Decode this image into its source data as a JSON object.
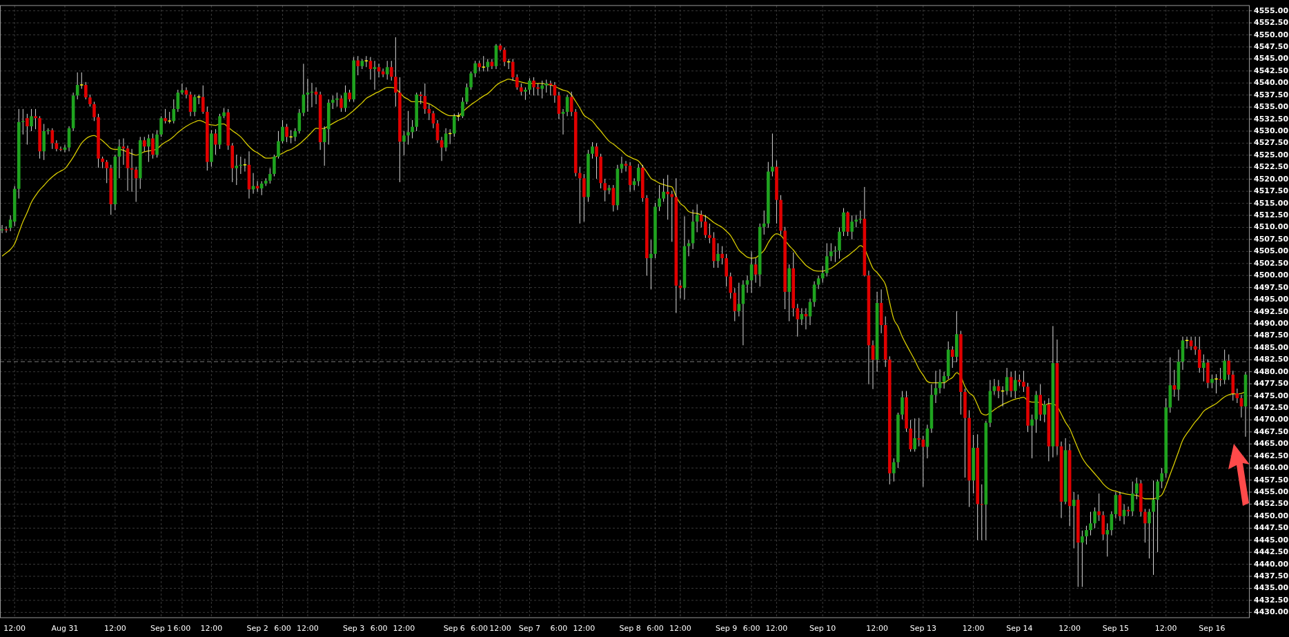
{
  "chart_data": {
    "type": "candlestick",
    "categories": [
      null,
      null,
      null,
      "12:00",
      null,
      null,
      null,
      null,
      null,
      null,
      null,
      null,
      null,
      null,
      null,
      "Aug 31",
      null,
      null,
      null,
      null,
      null,
      null,
      null,
      null,
      null,
      null,
      null,
      "12:00",
      null,
      null,
      null,
      null,
      null,
      null,
      null,
      null,
      null,
      null,
      "Sep 1",
      null,
      null,
      null,
      null,
      "6:00",
      null,
      null,
      null,
      null,
      null,
      null,
      "12:00",
      null,
      null,
      null,
      null,
      null,
      null,
      null,
      null,
      null,
      null,
      "Sep 2",
      null,
      null,
      null,
      null,
      null,
      "6:00",
      null,
      null,
      null,
      null,
      null,
      "12:00",
      null,
      null,
      null,
      null,
      null,
      null,
      null,
      null,
      null,
      null,
      "Sep 3",
      null,
      null,
      null,
      null,
      null,
      "6:00",
      null,
      null,
      null,
      null,
      null,
      "12:00",
      null,
      null,
      null,
      null,
      null,
      null,
      null,
      null,
      null,
      null,
      null,
      "Sep 6",
      null,
      null,
      null,
      null,
      null,
      "6:00",
      null,
      null,
      null,
      null,
      "12:00",
      null,
      null,
      null,
      null,
      null,
      null,
      "Sep 7",
      null,
      null,
      null,
      null,
      null,
      null,
      "6:00",
      null,
      null,
      null,
      null,
      null,
      "12:00",
      null,
      null,
      null,
      null,
      null,
      null,
      null,
      null,
      null,
      null,
      "Sep 8",
      null,
      null,
      null,
      null,
      null,
      "6:00",
      null,
      null,
      null,
      null,
      null,
      "12:00",
      null,
      null,
      null,
      null,
      null,
      null,
      null,
      null,
      null,
      null,
      "Sep 9",
      null,
      null,
      null,
      null,
      null,
      "6:00",
      null,
      null,
      null,
      null,
      null,
      "12:00",
      null,
      null,
      null,
      null,
      null,
      null,
      null,
      null,
      null,
      null,
      "Sep 10",
      null,
      null,
      null,
      null,
      null,
      null,
      null,
      null,
      null,
      null,
      null,
      null,
      "12:00",
      null,
      null,
      null,
      null,
      null,
      null,
      null,
      null,
      null,
      null,
      "Sep 13",
      null,
      null,
      null,
      null,
      null,
      null,
      null,
      null,
      null,
      null,
      null,
      "12:00",
      null,
      null,
      null,
      null,
      null,
      null,
      null,
      null,
      null,
      null,
      "Sep 14",
      null,
      null,
      null,
      null,
      null,
      null,
      null,
      null,
      null,
      null,
      null,
      "12:00",
      null,
      null,
      null,
      null,
      null,
      null,
      null,
      null,
      null,
      null,
      "Sep 15",
      null,
      null,
      null,
      null,
      null,
      null,
      null,
      null,
      null,
      null,
      null,
      "12:00",
      null,
      null,
      null,
      null,
      null,
      null,
      null,
      null,
      null,
      null,
      "Sep 16",
      null,
      null,
      null,
      null,
      null,
      null,
      null,
      null
    ],
    "ohlc": [
      [
        4509.4,
        4510.5,
        4508.8,
        4509.6
      ],
      [
        4509.6,
        4510.2,
        4508.9,
        4509.4
      ],
      [
        4509.9,
        4512.5,
        4509.2,
        4511.6
      ],
      [
        4511.2,
        4518.6,
        4510.3,
        4518.0
      ],
      [
        4518.0,
        4534.6,
        4516.0,
        4531.9
      ],
      [
        4531.9,
        4534.6,
        4529.3,
        4532.1
      ],
      [
        4532.7,
        4533.6,
        4527.2,
        4531.0
      ],
      [
        4531.0,
        4534.6,
        4530.0,
        4533.1
      ],
      [
        4533.1,
        4534.6,
        4530.4,
        4532.7
      ],
      [
        4532.7,
        4533.1,
        4524.3,
        4525.8
      ],
      [
        4525.8,
        4531.5,
        4524.0,
        4530.0
      ],
      [
        4530.0,
        4530.6,
        4529.3,
        4530.2
      ],
      [
        4530.2,
        4530.6,
        4526.3,
        4527.5
      ],
      [
        4527.5,
        4528.1,
        4525.8,
        4526.3
      ],
      [
        4526.3,
        4526.8,
        4525.8,
        4526.1
      ],
      [
        4526.1,
        4527.2,
        4525.6,
        4526.6
      ],
      [
        4526.6,
        4531.0,
        4525.8,
        4530.6
      ],
      [
        4530.6,
        4538.0,
        4530.0,
        4537.4
      ],
      [
        4537.4,
        4542.2,
        4536.6,
        4539.6
      ],
      [
        4539.6,
        4542.2,
        4538.8,
        4539.6
      ],
      [
        4539.6,
        4540.2,
        4536.6,
        4537.0
      ],
      [
        4537.0,
        4537.6,
        4535.1,
        4535.6
      ],
      [
        4535.6,
        4536.1,
        4532.1,
        4532.9
      ],
      [
        4532.9,
        4533.6,
        4522.4,
        4524.3
      ],
      [
        4524.3,
        4524.7,
        4522.3,
        4523.6
      ],
      [
        4523.6,
        4524.0,
        4519.2,
        4522.3
      ],
      [
        4522.3,
        4523.0,
        4512.6,
        4514.8
      ],
      [
        4514.8,
        4525.1,
        4513.6,
        4524.7
      ],
      [
        4524.7,
        4528.3,
        4520.2,
        4526.8
      ],
      [
        4526.8,
        4528.5,
        4523.0,
        4526.4
      ],
      [
        4526.4,
        4527.0,
        4517.6,
        4522.3
      ],
      [
        4522.3,
        4526.3,
        4517.4,
        4522.0
      ],
      [
        4522.0,
        4522.6,
        4515.3,
        4520.2
      ],
      [
        4520.2,
        4528.8,
        4518.0,
        4528.1
      ],
      [
        4528.1,
        4528.8,
        4525.8,
        4526.8
      ],
      [
        4526.8,
        4529.3,
        4523.6,
        4528.5
      ],
      [
        4528.5,
        4529.5,
        4524.3,
        4525.1
      ],
      [
        4525.1,
        4530.2,
        4524.5,
        4529.3
      ],
      [
        4529.3,
        4533.1,
        4528.8,
        4532.7
      ],
      [
        4532.7,
        4534.6,
        4531.6,
        4532.1
      ],
      [
        4532.1,
        4534.0,
        4531.6,
        4532.1
      ],
      [
        4532.1,
        4536.6,
        4531.6,
        4534.6
      ],
      [
        4534.6,
        4538.6,
        4534.0,
        4538.0
      ],
      [
        4538.0,
        4539.9,
        4537.6,
        4538.5
      ],
      [
        4538.5,
        4539.1,
        4536.8,
        4537.6
      ],
      [
        4537.6,
        4538.2,
        4533.1,
        4534.0
      ],
      [
        4534.0,
        4537.6,
        4533.1,
        4537.1
      ],
      [
        4537.1,
        4537.6,
        4535.6,
        4537.1
      ],
      [
        4537.1,
        4539.5,
        4533.6,
        4534.0
      ],
      [
        4534.0,
        4535.1,
        4521.8,
        4523.6
      ],
      [
        4523.6,
        4530.2,
        4522.6,
        4529.5
      ],
      [
        4529.5,
        4530.4,
        4525.1,
        4527.2
      ],
      [
        4527.2,
        4533.6,
        4526.3,
        4533.1
      ],
      [
        4533.1,
        4534.8,
        4532.7,
        4533.9
      ],
      [
        4533.9,
        4534.6,
        4526.1,
        4527.0
      ],
      [
        4527.0,
        4527.5,
        4519.4,
        4522.3
      ],
      [
        4522.3,
        4525.1,
        4518.8,
        4522.8
      ],
      [
        4522.8,
        4524.7,
        4521.1,
        4523.0
      ],
      [
        4523.0,
        4524.3,
        4521.6,
        4523.0
      ],
      [
        4523.0,
        4525.8,
        4516.0,
        4517.9
      ],
      [
        4517.9,
        4521.3,
        4517.0,
        4518.6
      ],
      [
        4518.6,
        4519.6,
        4517.4,
        4518.1
      ],
      [
        4518.1,
        4519.6,
        4516.7,
        4519.1
      ],
      [
        4519.1,
        4520.2,
        4518.6,
        4519.7
      ],
      [
        4519.7,
        4522.3,
        4519.1,
        4521.1
      ],
      [
        4521.1,
        4525.1,
        4520.6,
        4524.7
      ],
      [
        4524.7,
        4530.0,
        4524.3,
        4527.9
      ],
      [
        4527.9,
        4532.3,
        4527.5,
        4530.9
      ],
      [
        4530.9,
        4531.5,
        4527.7,
        4528.8
      ],
      [
        4528.8,
        4530.2,
        4527.5,
        4528.8
      ],
      [
        4528.8,
        4530.6,
        4527.9,
        4530.0
      ],
      [
        4530.0,
        4534.6,
        4529.5,
        4533.8
      ],
      [
        4533.8,
        4544.0,
        4533.1,
        4537.6
      ],
      [
        4537.6,
        4540.9,
        4534.0,
        4538.0
      ],
      [
        4538.0,
        4540.0,
        4535.0,
        4538.2
      ],
      [
        4538.2,
        4539.1,
        4535.6,
        4537.6
      ],
      [
        4537.6,
        4538.2,
        4526.1,
        4527.7
      ],
      [
        4527.7,
        4531.0,
        4522.8,
        4530.4
      ],
      [
        4530.4,
        4536.6,
        4527.2,
        4535.9
      ],
      [
        4535.9,
        4537.4,
        4534.6,
        4536.5
      ],
      [
        4536.5,
        4538.0,
        4535.1,
        4536.8
      ],
      [
        4536.8,
        4537.4,
        4534.0,
        4534.8
      ],
      [
        4534.8,
        4539.5,
        4534.0,
        4538.0
      ],
      [
        4538.0,
        4538.6,
        4536.1,
        4536.6
      ],
      [
        4536.6,
        4545.4,
        4536.1,
        4544.7
      ],
      [
        4544.7,
        4545.6,
        4541.6,
        4543.5
      ],
      [
        4543.5,
        4545.0,
        4542.9,
        4544.6
      ],
      [
        4544.6,
        4545.6,
        4543.3,
        4544.6
      ],
      [
        4544.6,
        4545.4,
        4540.7,
        4542.9
      ],
      [
        4542.9,
        4544.6,
        4538.6,
        4543.3
      ],
      [
        4543.3,
        4544.0,
        4541.2,
        4542.4
      ],
      [
        4542.4,
        4543.0,
        4541.2,
        4541.8
      ],
      [
        4541.8,
        4544.6,
        4540.7,
        4543.3
      ],
      [
        4543.3,
        4544.6,
        4540.5,
        4541.3
      ],
      [
        4541.3,
        4549.5,
        4535.1,
        4538.0
      ],
      [
        4538.0,
        4541.2,
        4519.4,
        4527.8
      ],
      [
        4527.8,
        4530.0,
        4525.0,
        4529.1
      ],
      [
        4529.1,
        4534.2,
        4527.2,
        4529.8
      ],
      [
        4529.8,
        4532.3,
        4528.5,
        4530.9
      ],
      [
        4530.9,
        4538.0,
        4530.0,
        4537.6
      ],
      [
        4537.6,
        4538.2,
        4535.6,
        4537.3
      ],
      [
        4537.3,
        4539.9,
        4533.6,
        4534.6
      ],
      [
        4534.6,
        4535.6,
        4532.3,
        4533.7
      ],
      [
        4533.7,
        4534.2,
        4530.6,
        4531.6
      ],
      [
        4531.6,
        4532.3,
        4527.5,
        4528.1
      ],
      [
        4528.1,
        4528.8,
        4523.8,
        4526.6
      ],
      [
        4526.6,
        4530.6,
        4525.8,
        4529.5
      ],
      [
        4529.5,
        4530.4,
        4527.3,
        4529.5
      ],
      [
        4529.5,
        4533.6,
        4528.8,
        4533.1
      ],
      [
        4533.1,
        4533.9,
        4532.1,
        4533.1
      ],
      [
        4533.1,
        4537.0,
        4532.7,
        4536.1
      ],
      [
        4536.1,
        4539.9,
        4535.6,
        4539.1
      ],
      [
        4539.1,
        4542.4,
        4538.6,
        4542.0
      ],
      [
        4542.0,
        4544.6,
        4541.2,
        4544.1
      ],
      [
        4544.1,
        4544.6,
        4542.4,
        4543.3
      ],
      [
        4543.3,
        4545.6,
        4542.4,
        4543.3
      ],
      [
        4543.3,
        4545.0,
        4542.4,
        4544.4
      ],
      [
        4544.4,
        4545.0,
        4542.9,
        4543.5
      ],
      [
        4543.5,
        4548.1,
        4542.9,
        4547.8
      ],
      [
        4547.8,
        4548.1,
        4546.6,
        4546.9
      ],
      [
        4546.9,
        4547.4,
        4543.5,
        4544.4
      ],
      [
        4544.4,
        4545.0,
        4542.9,
        4544.4
      ],
      [
        4544.4,
        4545.0,
        4540.5,
        4541.2
      ],
      [
        4541.2,
        4541.8,
        4538.6,
        4539.1
      ],
      [
        4539.1,
        4539.9,
        4537.4,
        4538.2
      ],
      [
        4538.2,
        4539.1,
        4536.5,
        4538.6
      ],
      [
        4538.6,
        4541.0,
        4537.6,
        4540.5
      ],
      [
        4540.5,
        4541.2,
        4537.4,
        4539.1
      ],
      [
        4539.1,
        4539.9,
        4537.4,
        4538.8
      ],
      [
        4538.8,
        4540.5,
        4536.8,
        4539.5
      ],
      [
        4539.5,
        4540.7,
        4538.0,
        4539.9
      ],
      [
        4539.9,
        4540.5,
        4537.4,
        4539.6
      ],
      [
        4539.6,
        4540.2,
        4535.9,
        4537.4
      ],
      [
        4537.4,
        4538.2,
        4532.5,
        4533.6
      ],
      [
        4533.6,
        4534.6,
        4529.3,
        4534.0
      ],
      [
        4534.0,
        4537.6,
        4533.1,
        4537.1
      ],
      [
        4537.1,
        4538.2,
        4533.1,
        4534.0
      ],
      [
        4534.0,
        4534.6,
        4520.6,
        4521.3
      ],
      [
        4521.3,
        4522.6,
        4510.8,
        4520.2
      ],
      [
        4520.2,
        4521.1,
        4511.2,
        4516.3
      ],
      [
        4516.3,
        4526.1,
        4515.3,
        4525.3
      ],
      [
        4525.3,
        4527.7,
        4524.3,
        4526.8
      ],
      [
        4526.8,
        4527.5,
        4520.1,
        4524.7
      ],
      [
        4524.7,
        4525.3,
        4518.1,
        4519.2
      ],
      [
        4519.2,
        4520.1,
        4515.4,
        4517.7
      ],
      [
        4517.7,
        4518.8,
        4516.9,
        4518.2
      ],
      [
        4518.2,
        4518.8,
        4513.3,
        4514.6
      ],
      [
        4514.6,
        4523.0,
        4513.6,
        4522.2
      ],
      [
        4522.2,
        4524.7,
        4521.3,
        4523.2
      ],
      [
        4523.2,
        4523.8,
        4521.6,
        4522.8
      ],
      [
        4522.8,
        4523.6,
        4517.4,
        4518.8
      ],
      [
        4518.8,
        4520.2,
        4517.7,
        4519.6
      ],
      [
        4519.6,
        4523.2,
        4518.6,
        4522.4
      ],
      [
        4522.4,
        4523.0,
        4515.3,
        4516.1
      ],
      [
        4516.1,
        4516.7,
        4500.0,
        4503.6
      ],
      [
        4503.6,
        4507.4,
        4497.1,
        4504.5
      ],
      [
        4504.5,
        4515.1,
        4503.6,
        4514.3
      ],
      [
        4514.3,
        4518.8,
        4513.4,
        4516.0
      ],
      [
        4516.0,
        4520.1,
        4515.3,
        4517.4
      ],
      [
        4517.4,
        4520.9,
        4511.6,
        4516.9
      ],
      [
        4516.9,
        4517.6,
        4507.0,
        4516.3
      ],
      [
        4516.3,
        4520.2,
        4492.2,
        4497.9
      ],
      [
        4497.9,
        4499.0,
        4495.2,
        4497.4
      ],
      [
        4497.4,
        4512.3,
        4495.0,
        4506.1
      ],
      [
        4506.1,
        4507.4,
        4504.0,
        4506.7
      ],
      [
        4506.7,
        4513.7,
        4505.5,
        4511.2
      ],
      [
        4511.2,
        4514.8,
        4509.0,
        4512.6
      ],
      [
        4512.6,
        4513.5,
        4510.0,
        4511.2
      ],
      [
        4511.2,
        4512.6,
        4507.8,
        4508.4
      ],
      [
        4508.4,
        4510.8,
        4506.7,
        4507.8
      ],
      [
        4507.8,
        4509.0,
        4501.6,
        4503.0
      ],
      [
        4503.0,
        4506.7,
        4501.6,
        4504.5
      ],
      [
        4504.5,
        4506.1,
        4502.3,
        4503.6
      ],
      [
        4503.6,
        4504.5,
        4497.7,
        4499.8
      ],
      [
        4499.8,
        4500.6,
        4495.2,
        4496.4
      ],
      [
        4496.4,
        4497.4,
        4490.5,
        4492.6
      ],
      [
        4492.6,
        4498.5,
        4491.5,
        4494.1
      ],
      [
        4494.1,
        4499.0,
        4485.5,
        4498.1
      ],
      [
        4498.1,
        4500.0,
        4496.4,
        4499.0
      ],
      [
        4499.0,
        4505.0,
        4496.4,
        4502.3
      ],
      [
        4502.3,
        4503.6,
        4498.5,
        4500.2
      ],
      [
        4500.2,
        4510.8,
        4497.7,
        4510.1
      ],
      [
        4510.1,
        4513.5,
        4508.5,
        4510.8
      ],
      [
        4510.8,
        4523.6,
        4509.9,
        4521.6
      ],
      [
        4521.6,
        4529.5,
        4520.6,
        4522.6
      ],
      [
        4522.6,
        4523.9,
        4510.8,
        4515.7
      ],
      [
        4515.7,
        4516.7,
        4508.5,
        4509.3
      ],
      [
        4509.3,
        4510.1,
        4493.0,
        4496.6
      ],
      [
        4496.6,
        4502.3,
        4490.5,
        4501.5
      ],
      [
        4501.5,
        4504.8,
        4491.5,
        4493.2
      ],
      [
        4493.2,
        4494.1,
        4487.3,
        4490.9
      ],
      [
        4490.9,
        4493.2,
        4489.7,
        4492.0
      ],
      [
        4492.0,
        4493.2,
        4488.8,
        4491.5
      ],
      [
        4491.5,
        4495.2,
        4489.7,
        4494.5
      ],
      [
        4494.5,
        4498.8,
        4493.5,
        4498.1
      ],
      [
        4498.1,
        4500.0,
        4497.2,
        4499.4
      ],
      [
        4499.4,
        4502.0,
        4498.5,
        4500.5
      ],
      [
        4500.5,
        4506.7,
        4499.8,
        4504.0
      ],
      [
        4504.0,
        4506.7,
        4503.0,
        4505.0
      ],
      [
        4505.0,
        4506.1,
        4502.8,
        4505.2
      ],
      [
        4505.2,
        4510.0,
        4503.5,
        4509.1
      ],
      [
        4509.1,
        4514.0,
        4508.2,
        4513.1
      ],
      [
        4513.1,
        4513.3,
        4508.2,
        4509.1
      ],
      [
        4509.1,
        4512.5,
        4507.5,
        4511.2
      ],
      [
        4511.2,
        4512.6,
        4510.0,
        4511.6
      ],
      [
        4511.6,
        4513.5,
        4510.8,
        4511.8
      ],
      [
        4511.8,
        4518.4,
        4499.8,
        4500.0
      ],
      [
        4500.0,
        4501.0,
        4477.4,
        4485.5
      ],
      [
        4485.5,
        4486.5,
        4476.4,
        4482.5
      ],
      [
        4482.5,
        4496.6,
        4480.0,
        4494.3
      ],
      [
        4494.3,
        4497.1,
        4488.0,
        4489.7
      ],
      [
        4489.7,
        4491.5,
        4481.0,
        4482.5
      ],
      [
        4482.5,
        4483.2,
        4456.6,
        4458.9
      ],
      [
        4458.9,
        4462.0,
        4457.2,
        4461.2
      ],
      [
        4461.2,
        4471.5,
        4460.0,
        4471.1
      ],
      [
        4471.1,
        4476.0,
        4470.1,
        4474.7
      ],
      [
        4474.7,
        4476.0,
        4467.5,
        4468.2
      ],
      [
        4468.2,
        4470.0,
        4463.4,
        4463.9
      ],
      [
        4463.9,
        4470.3,
        4463.4,
        4466.2
      ],
      [
        4466.2,
        4470.4,
        4464.5,
        4465.9
      ],
      [
        4465.9,
        4466.7,
        4456.1,
        4464.4
      ],
      [
        4464.4,
        4469.0,
        4462.0,
        4468.2
      ],
      [
        4468.2,
        4477.4,
        4467.3,
        4475.2
      ],
      [
        4475.2,
        4480.2,
        4473.5,
        4476.6
      ],
      [
        4476.6,
        4480.5,
        4475.5,
        4477.9
      ],
      [
        4477.9,
        4480.0,
        4476.5,
        4479.1
      ],
      [
        4479.1,
        4486.3,
        4478.5,
        4484.6
      ],
      [
        4484.6,
        4485.3,
        4480.8,
        4483.1
      ],
      [
        4483.1,
        4492.6,
        4482.0,
        4487.8
      ],
      [
        4487.8,
        4488.5,
        4471.1,
        4475.8
      ],
      [
        4475.8,
        4476.5,
        4458.0,
        4470.4
      ],
      [
        4470.4,
        4472.0,
        4451.9,
        4457.4
      ],
      [
        4457.4,
        4466.9,
        4454.7,
        4464.2
      ],
      [
        4464.2,
        4467.0,
        4445.0,
        4452.5
      ],
      [
        4452.5,
        4456.6,
        4445.0,
        4452.4
      ],
      [
        4452.4,
        4469.8,
        4445.0,
        4469.4
      ],
      [
        4469.4,
        4478.3,
        4468.5,
        4476.0
      ],
      [
        4476.0,
        4478.5,
        4475.2,
        4477.0
      ],
      [
        4477.0,
        4478.3,
        4474.5,
        4476.0
      ],
      [
        4476.0,
        4477.0,
        4472.8,
        4476.0
      ],
      [
        4476.0,
        4480.8,
        4475.2,
        4478.9
      ],
      [
        4478.9,
        4480.0,
        4474.7,
        4476.0
      ],
      [
        4476.0,
        4480.2,
        4474.5,
        4478.3
      ],
      [
        4478.3,
        4479.4,
        4477.0,
        4477.9
      ],
      [
        4477.9,
        4480.2,
        4475.8,
        4476.9
      ],
      [
        4476.9,
        4477.7,
        4467.5,
        4468.8
      ],
      [
        4468.8,
        4471.1,
        4462.0,
        4470.1
      ],
      [
        4470.1,
        4476.0,
        4467.3,
        4475.2
      ],
      [
        4475.2,
        4477.4,
        4469.8,
        4471.1
      ],
      [
        4471.1,
        4474.0,
        4469.5,
        4473.2
      ],
      [
        4473.2,
        4474.5,
        4461.4,
        4464.5
      ],
      [
        4464.5,
        4489.5,
        4462.2,
        4481.8
      ],
      [
        4481.8,
        4486.7,
        4462.7,
        4464.5
      ],
      [
        4464.5,
        4465.5,
        4449.6,
        4453.0
      ],
      [
        4453.0,
        4466.2,
        4452.5,
        4463.7
      ],
      [
        4463.7,
        4465.0,
        4447.9,
        4452.1
      ],
      [
        4452.1,
        4455.0,
        4443.3,
        4453.4
      ],
      [
        4453.4,
        4454.5,
        4435.3,
        4444.5
      ],
      [
        4444.5,
        4447.0,
        4435.3,
        4445.8
      ],
      [
        4445.8,
        4448.0,
        4444.1,
        4447.1
      ],
      [
        4447.1,
        4450.9,
        4446.0,
        4448.5
      ],
      [
        4448.5,
        4451.8,
        4447.5,
        4451.0
      ],
      [
        4451.0,
        4454.7,
        4449.0,
        4450.2
      ],
      [
        4450.2,
        4451.0,
        4445.0,
        4446.2
      ],
      [
        4446.2,
        4448.5,
        4441.6,
        4447.1
      ],
      [
        4447.1,
        4451.0,
        4446.0,
        4450.4
      ],
      [
        4450.4,
        4455.0,
        4449.5,
        4454.4
      ],
      [
        4454.4,
        4455.1,
        4449.0,
        4450.0
      ],
      [
        4450.0,
        4452.5,
        4448.3,
        4451.3
      ],
      [
        4451.3,
        4452.0,
        4450.0,
        4451.0
      ],
      [
        4451.0,
        4457.2,
        4450.0,
        4454.7
      ],
      [
        4454.7,
        4458.0,
        4453.5,
        4456.8
      ],
      [
        4456.8,
        4457.5,
        4449.9,
        4450.9
      ],
      [
        4450.9,
        4451.5,
        4444.5,
        4448.5
      ],
      [
        4448.5,
        4451.5,
        4441.2,
        4450.9
      ],
      [
        4450.9,
        4457.4,
        4437.8,
        4453.4
      ],
      [
        4453.4,
        4457.6,
        4442.5,
        4457.2
      ],
      [
        4457.2,
        4460.0,
        4455.8,
        4458.9
      ],
      [
        4458.9,
        4474.5,
        4458.0,
        4472.6
      ],
      [
        4472.6,
        4483.0,
        4471.5,
        4477.2
      ],
      [
        4477.2,
        4480.4,
        4474.8,
        4476.3
      ],
      [
        4476.3,
        4484.6,
        4474.0,
        4482.1
      ],
      [
        4482.1,
        4487.3,
        4480.4,
        4486.5
      ],
      [
        4486.5,
        4487.3,
        4484.8,
        4486.5
      ],
      [
        4486.5,
        4487.3,
        4484.5,
        4485.3
      ],
      [
        4485.3,
        4487.3,
        4483.5,
        4484.6
      ],
      [
        4484.6,
        4487.3,
        4479.8,
        4480.8
      ],
      [
        4480.8,
        4483.6,
        4478.0,
        4481.9
      ],
      [
        4481.9,
        4482.6,
        4476.6,
        4477.7
      ],
      [
        4477.7,
        4479.4,
        4476.6,
        4478.5
      ],
      [
        4478.5,
        4479.5,
        4475.5,
        4478.5
      ],
      [
        4478.5,
        4480.8,
        4477.0,
        4478.3
      ],
      [
        4478.3,
        4484.6,
        4477.4,
        4482.3
      ],
      [
        4482.3,
        4483.6,
        4478.3,
        4479.4
      ],
      [
        4479.4,
        4480.2,
        4474.0,
        4475.5
      ],
      [
        4475.5,
        4476.5,
        4473.5,
        4474.5
      ],
      [
        4474.5,
        4475.2,
        4470.5,
        4472.8
      ],
      [
        4472.8,
        4480.0,
        4466.5,
        4479.4
      ]
    ],
    "series": [
      {
        "type": "line",
        "color": "#d8cc00",
        "values": [
          4504.0,
          4504.7,
          4505.4,
          4506.6,
          4508.9,
          4511.2,
          4513.1,
          4515.2,
          4516.6,
          4517.8,
          4518.7,
          4519.7,
          4520.5,
          4521.2,
          4521.7,
          4522.2,
          4523.3,
          4524.6,
          4526.1,
          4527.5,
          4528.4,
          4528.9,
          4529.1,
          4528.6,
          4528.0,
          4527.2,
          4526.4,
          4526.2,
          4526.2,
          4526.0,
          4525.6,
          4525.3,
          4525.0,
          4525.3,
          4525.7,
          4525.9,
          4526.0,
          4526.3,
          4527.1,
          4527.7,
          4528.2,
          4528.9,
          4529.7,
          4530.4,
          4531.0,
          4531.5,
          4531.9,
          4532.2,
          4532.0,
          4531.5,
          4531.3,
          4531.2,
          4531.5,
          4531.5,
          4530.8,
          4530.1,
          4529.5,
          4528.8,
          4527.8,
          4526.8,
          4526.0,
          4525.5,
          4524.9,
          4524.4,
          4524.4,
          4524.5,
          4525.0,
          4525.4,
          4525.9,
          4526.2,
          4526.7,
          4527.3,
          4528.1,
          4528.9,
          4529.8,
          4530.6,
          4530.5,
          4530.6,
          4531.1,
          4531.6,
          4532.1,
          4532.5,
          4532.9,
          4533.6,
          4534.3,
          4535.1,
          4535.9,
          4536.8,
          4537.3,
          4537.8,
          4538.2,
          4538.7,
          4539.1,
          4539.1,
          4538.8,
          4538.0,
          4537.1,
          4536.6,
          4536.1,
          4536.1,
          4536.1,
          4535.9,
          4535.7,
          4535.2,
          4534.6,
          4534.0,
          4533.5,
          4533.2,
          4533.2,
          4533.2,
          4534.0,
          4534.8,
          4535.5,
          4536.1,
          4536.7,
          4537.3,
          4537.8,
          4538.6,
          4539.5,
          4540.1,
          4540.5,
          4540.8,
          4540.6,
          4540.4,
          4540.2,
          4540.0,
          4539.9,
          4539.9,
          4539.9,
          4539.9,
          4539.7,
          4539.6,
          4539.3,
          4538.9,
          4538.5,
          4538.3,
          4537.5,
          4536.2,
          4534.8,
          4533.3,
          4532.7,
          4532.1,
          4531.0,
          4530.0,
          4528.9,
          4527.9,
          4527.3,
          4526.6,
          4525.9,
          4525.1,
          4524.6,
          4524.2,
          4523.8,
          4522.7,
          4521.5,
          4520.2,
          4519.7,
          4519.2,
          4518.9,
          4518.6,
          4518.4,
          4516.4,
          4515.0,
          4514.3,
          4513.3,
          4513.0,
          4512.9,
          4512.6,
          4512.3,
          4511.7,
          4511.0,
          4510.5,
          4510.0,
          4509.2,
          4508.3,
          4506.8,
          4505.3,
          4504.5,
          4503.8,
          4503.6,
          4503.7,
          4504.4,
          4505.2,
          4506.8,
          4508.1,
          4508.7,
          4508.3,
          4507.3,
          4506.2,
          4505.3,
          4504.1,
          4503.1,
          4502.1,
          4501.5,
          4501.0,
          4500.9,
          4500.9,
          4501.2,
          4501.5,
          4502.1,
          4502.8,
          4503.5,
          4504.1,
          4504.8,
          4505.5,
          4506.2,
          4505.5,
          4503.5,
          4501.5,
          4500.6,
          4499.5,
          4498.1,
          4494.4,
          4490.9,
          4489.4,
          4487.3,
          4485.6,
          4484.0,
          4482.4,
          4480.6,
          4479.3,
          4478.0,
          4477.7,
          4477.7,
          4477.7,
          4477.7,
          4478.3,
          4478.8,
          4479.8,
          4479.0,
          4476.9,
          4475.6,
          4474.9,
          4473.1,
          4471.3,
          4471.0,
          4471.5,
          4472.1,
          4472.7,
          4473.2,
          4473.6,
          4474.0,
          4474.3,
          4474.5,
          4474.7,
          4474.0,
          4473.7,
          4473.7,
          4473.5,
          4473.0,
          4473.4,
          4473.3,
          4472.8,
          4471.2,
          4469.5,
          4468.2,
          4466.1,
          4464.0,
          4462.1,
          4460.8,
          4459.8,
          4458.8,
          4457.8,
          4456.7,
          4455.9,
          4455.4,
          4455.2,
          4454.9,
          4454.7,
          4454.5,
          4454.4,
          4454.3,
          4454.0,
          4453.6,
          4453.6,
          4453.6,
          4453.9,
          4454.4,
          4456.3,
          4458.7,
          4461.0,
          4463.4,
          4465.8,
          4467.2,
          4468.4,
          4469.6,
          4470.6,
          4471.8,
          4472.4,
          4472.9,
          4473.4,
          4474.1,
          4474.8,
          4475.2,
          4475.4,
          4475.4,
          4475.5,
          4475.8
        ]
      }
    ],
    "ylim": [
      4428.9,
      4556.1
    ],
    "yticks": [
      {
        "value": 4430,
        "label": "4430.00"
      },
      {
        "value": 4432.5,
        "label": "4432.50"
      },
      {
        "value": 4435,
        "label": "4435.00"
      },
      {
        "value": 4437.5,
        "label": "4437.50"
      },
      {
        "value": 4440,
        "label": "4440.00"
      },
      {
        "value": 4442.5,
        "label": "4442.50"
      },
      {
        "value": 4445,
        "label": "4445.00"
      },
      {
        "value": 4447.5,
        "label": "4447.50"
      },
      {
        "value": 4450,
        "label": "4450.00"
      },
      {
        "value": 4452.5,
        "label": "4452.50"
      },
      {
        "value": 4455,
        "label": "4455.00"
      },
      {
        "value": 4457.5,
        "label": "4457.50"
      },
      {
        "value": 4460,
        "label": "4460.00"
      },
      {
        "value": 4462.5,
        "label": "4462.50"
      },
      {
        "value": 4465,
        "label": "4465.00"
      },
      {
        "value": 4467.5,
        "label": "4467.50"
      },
      {
        "value": 4470,
        "label": "4470.00"
      },
      {
        "value": 4472.5,
        "label": "4472.50"
      },
      {
        "value": 4475,
        "label": "4475.00"
      },
      {
        "value": 4477.5,
        "label": "4477.50"
      },
      {
        "value": 4480,
        "label": "4480.00"
      },
      {
        "value": 4482.5,
        "label": "4482.50"
      },
      {
        "value": 4485,
        "label": "4485.00"
      },
      {
        "value": 4487.5,
        "label": "4487.50"
      },
      {
        "value": 4490,
        "label": "4490.00"
      },
      {
        "value": 4492.5,
        "label": "4492.50"
      },
      {
        "value": 4495,
        "label": "4495.00"
      },
      {
        "value": 4497.5,
        "label": "4497.50"
      },
      {
        "value": 4500,
        "label": "4500.00"
      },
      {
        "value": 4502.5,
        "label": "4502.50"
      },
      {
        "value": 4505,
        "label": "4505.00"
      },
      {
        "value": 4507.5,
        "label": "4507.50"
      },
      {
        "value": 4510,
        "label": "4510.00"
      },
      {
        "value": 4512.5,
        "label": "4512.50"
      },
      {
        "value": 4515,
        "label": "4515.00"
      },
      {
        "value": 4517.5,
        "label": "4517.50"
      },
      {
        "value": 4520,
        "label": "4520.00"
      },
      {
        "value": 4522.5,
        "label": "4522.50"
      },
      {
        "value": 4525,
        "label": "4525.00"
      },
      {
        "value": 4527.5,
        "label": "4527.50"
      },
      {
        "value": 4530,
        "label": "4530.00"
      },
      {
        "value": 4532.5,
        "label": "4532.50"
      },
      {
        "value": 4535,
        "label": "4535.00"
      },
      {
        "value": 4537.5,
        "label": "4537.50"
      },
      {
        "value": 4540,
        "label": "4540.00"
      },
      {
        "value": 4542.5,
        "label": "4542.50"
      },
      {
        "value": 4545,
        "label": "4545.00"
      },
      {
        "value": 4547.5,
        "label": "4547.50"
      },
      {
        "value": 4550,
        "label": "4550.00"
      },
      {
        "value": 4552.5,
        "label": "4552.50"
      },
      {
        "value": 4555,
        "label": "4555.00"
      }
    ],
    "ref_lines": [
      {
        "axis": "y",
        "value": 4482.1,
        "color": "#7a7a7a",
        "line_style": "dashed"
      }
    ],
    "grid": true
  }
}
